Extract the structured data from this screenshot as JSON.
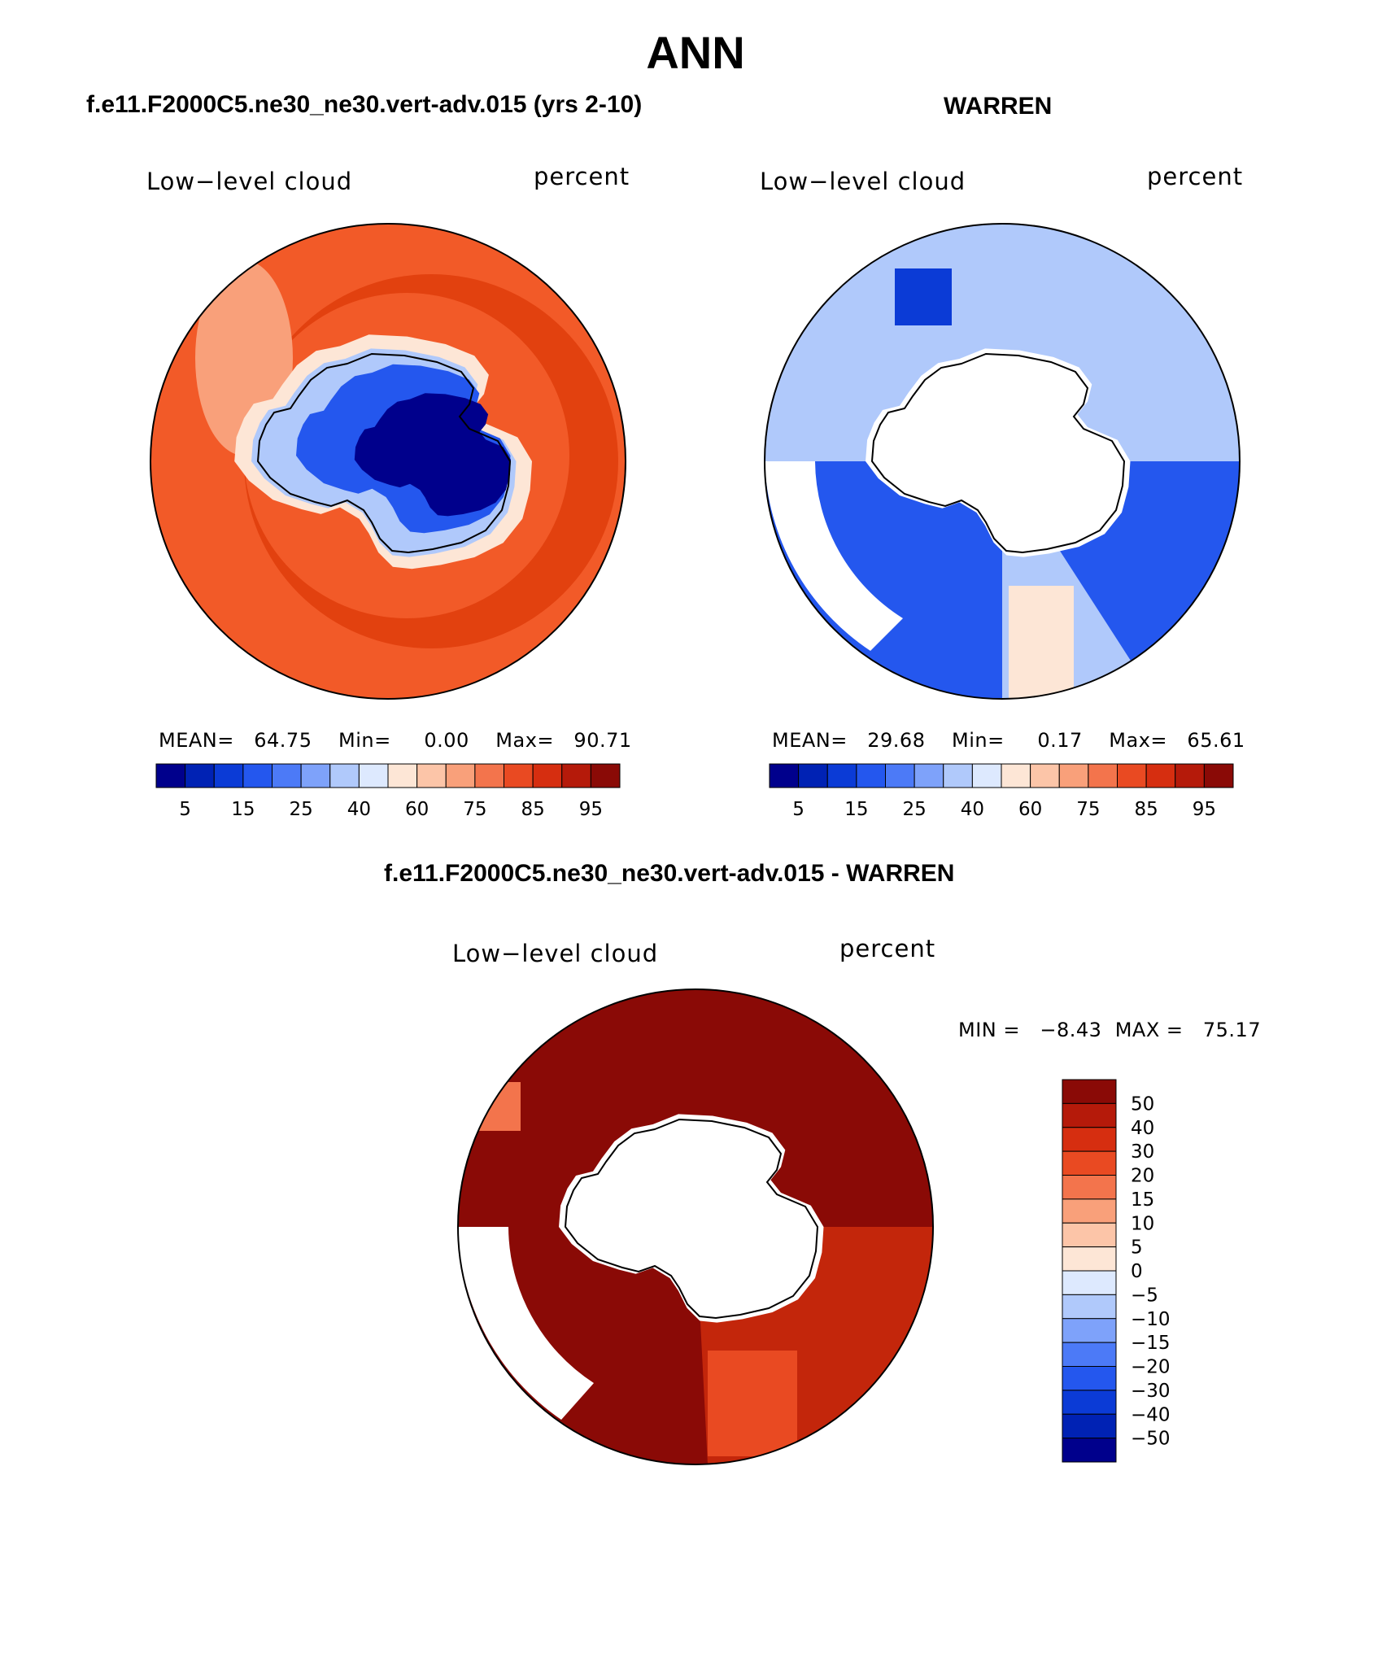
{
  "title": "ANN",
  "panels": {
    "model": {
      "title": "f.e11.F2000C5.ne30_ne30.vert-adv.015 (yrs 2-10)",
      "left_label": "Low−level cloud",
      "right_label": "percent",
      "stats": {
        "mean_label": "MEAN=",
        "mean": "64.75",
        "min_label": "Min=",
        "min": "0.00",
        "max_label": "Max=",
        "max": "90.71"
      }
    },
    "obs": {
      "title": "WARREN",
      "left_label": "Low−level cloud",
      "right_label": "percent",
      "stats": {
        "mean_label": "MEAN=",
        "mean": "29.68",
        "min_label": "Min=",
        "min": "0.17",
        "max_label": "Max=",
        "max": "65.61"
      }
    },
    "diff": {
      "title": "f.e11.F2000C5.ne30_ne30.vert-adv.015 - WARREN",
      "left_label": "Low−level cloud",
      "right_label": "percent",
      "minmax": {
        "min_label": "MIN =",
        "min": "−8.43",
        "max_label": "MAX =",
        "max": "75.17"
      }
    }
  },
  "colorbar_abs": {
    "colors": [
      "#00008c",
      "#0022b4",
      "#0b3bd6",
      "#2457ee",
      "#4c7af7",
      "#7ea2fa",
      "#b0c9fb",
      "#dde9fe",
      "#fde6d6",
      "#fcc5a8",
      "#f9a07a",
      "#f3744c",
      "#e94a22",
      "#d62e10",
      "#b51a0a",
      "#8a0a06"
    ],
    "ticks": [
      "5",
      "15",
      "25",
      "40",
      "60",
      "75",
      "85",
      "95"
    ]
  },
  "colorbar_diff": {
    "colors": [
      "#8a0a06",
      "#b51a0a",
      "#d62e10",
      "#e94a22",
      "#f3744c",
      "#f9a07a",
      "#fcc5a8",
      "#fde6d6",
      "#dde9fe",
      "#b0c9fb",
      "#7ea2fa",
      "#4c7af7",
      "#2457ee",
      "#0b3bd6",
      "#0022b4",
      "#00008c"
    ],
    "ticks": [
      "50",
      "40",
      "30",
      "20",
      "15",
      "10",
      "5",
      "0",
      "−5",
      "−10",
      "−15",
      "−20",
      "−30",
      "−40",
      "−50"
    ]
  },
  "palette": {
    "ocean_model": "#f25a28",
    "ocean_model_dark": "#e2410f",
    "ice_plateau": "#00008c",
    "diff_dark": "#8a0a06",
    "diff_mid": "#c3260b",
    "obs_blue": "#2457ee",
    "obs_light": "#b0c9fb"
  }
}
